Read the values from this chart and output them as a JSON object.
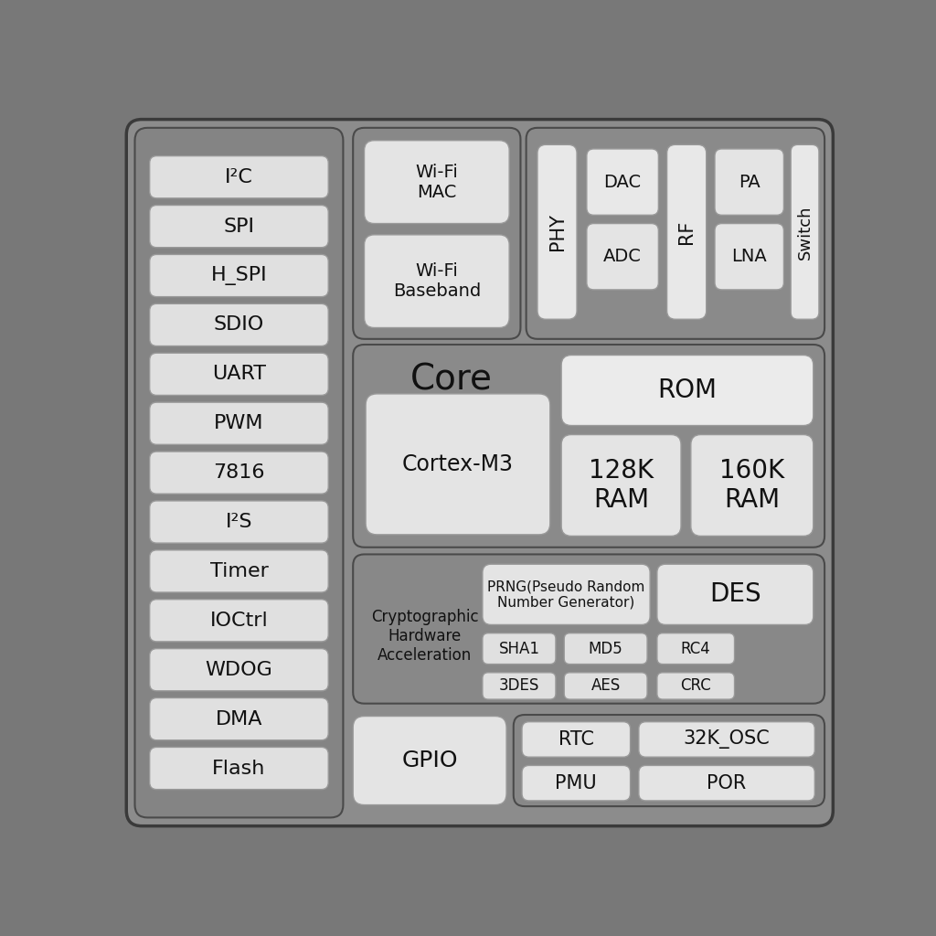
{
  "bg_outer": "#787878",
  "bg_main": "#8a8a8a",
  "bg_panel": "#858585",
  "bg_section": "#909090",
  "box_fill": "#e2e2e2",
  "box_fill2": "#ebebeb",
  "text_color": "#111111",
  "figsize": [
    10.24,
    10.24
  ],
  "dpi": 100,
  "left_labels": [
    "I²C",
    "SPI",
    "H_SPI",
    "SDIO",
    "UART",
    "PWM",
    "7816",
    "I²S",
    "Timer",
    "IOCtrl",
    "WDOG",
    "DMA",
    "Flash"
  ]
}
